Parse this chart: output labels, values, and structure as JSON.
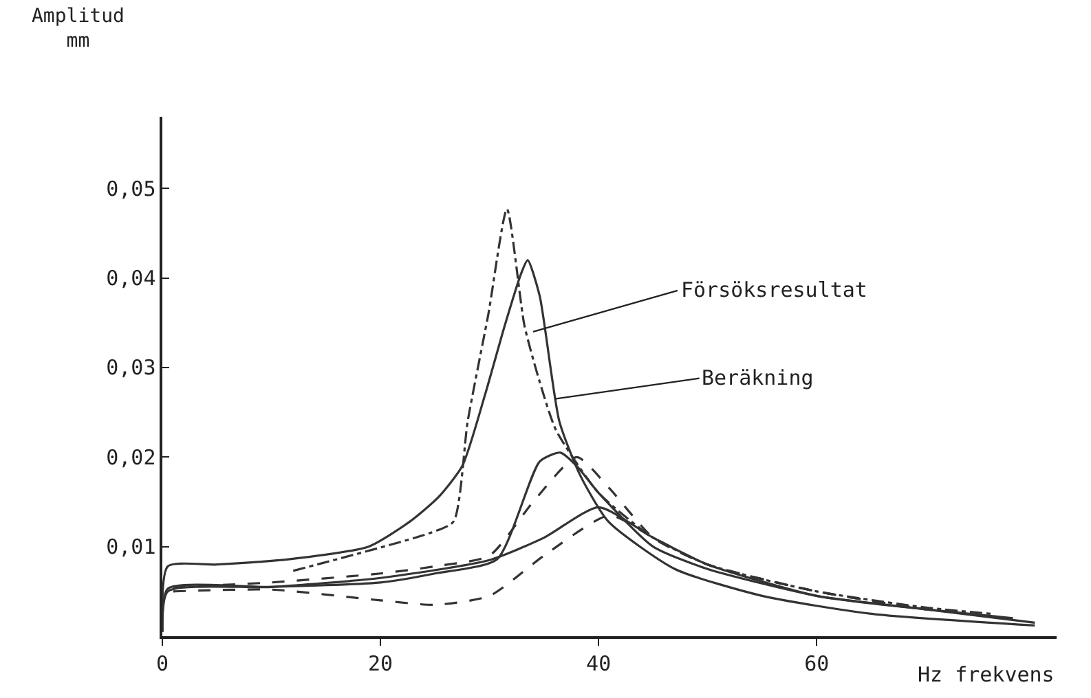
{
  "chart_data": {
    "type": "line",
    "xlabel": "Hz frekvens",
    "ylabel": "Amplitud\nmm",
    "xlim": [
      0,
      82
    ],
    "xticks": [
      0,
      20,
      40,
      60
    ],
    "ylim": [
      0,
      0.058
    ],
    "yticks": [
      {
        "value": 0.01,
        "label": "0,01"
      },
      {
        "value": 0.02,
        "label": "0,02"
      },
      {
        "value": 0.03,
        "label": "0,03"
      },
      {
        "value": 0.04,
        "label": "0,04"
      },
      {
        "value": 0.05,
        "label": "0,05"
      }
    ],
    "marker": "none",
    "annotations": [
      {
        "text": "Försöksresultat",
        "x": 34,
        "y": 0.034
      },
      {
        "text": "Beräkning",
        "x": 36,
        "y": 0.0265
      }
    ],
    "series": [
      {
        "color": "#333333",
        "line_style": "solid",
        "x": [
          0,
          0.5,
          5,
          11.7,
          18.9,
          22.7,
          25.3,
          27.5,
          29.6,
          31.4,
          32.9,
          33.5,
          34.6,
          36.4,
          38.3,
          40.9,
          47,
          55,
          65,
          80
        ],
        "values": [
          0.0005,
          0.0078,
          0.008,
          0.0086,
          0.01,
          0.0128,
          0.0155,
          0.019,
          0.027,
          0.0347,
          0.0405,
          0.042,
          0.038,
          0.024,
          0.018,
          0.0128,
          0.0075,
          0.0045,
          0.0025,
          0.0012
        ]
      },
      {
        "color": "#333333",
        "line_style": "dashdot",
        "x": [
          12,
          24.5,
          26.7,
          28,
          29.9,
          31.6,
          33.2,
          34.6,
          36.1,
          40,
          45,
          50,
          60,
          70,
          76
        ],
        "values": [
          0.0073,
          0.0115,
          0.0128,
          0.024,
          0.036,
          0.0477,
          0.0347,
          0.0284,
          0.023,
          0.016,
          0.011,
          0.008,
          0.005,
          0.0032,
          0.0025
        ]
      },
      {
        "color": "#333333",
        "line_style": "solid",
        "x": [
          0,
          0.5,
          10,
          20,
          25,
          30.7,
          34.6,
          36.5,
          38,
          40,
          45,
          50,
          60,
          70,
          80
        ],
        "values": [
          0.0005,
          0.0053,
          0.0055,
          0.006,
          0.007,
          0.0086,
          0.0195,
          0.0205,
          0.019,
          0.016,
          0.01,
          0.0075,
          0.0045,
          0.003,
          0.0015
        ]
      },
      {
        "color": "#333333",
        "line_style": "dashed",
        "x": [
          1,
          10,
          20,
          25,
          30,
          34,
          38,
          41,
          45,
          50,
          60,
          70
        ],
        "values": [
          0.0055,
          0.006,
          0.007,
          0.0078,
          0.009,
          0.015,
          0.02,
          0.0165,
          0.011,
          0.008,
          0.005,
          0.003
        ]
      },
      {
        "color": "#333333",
        "line_style": "solid",
        "x": [
          0,
          0.5,
          10,
          20,
          30,
          35,
          40,
          45,
          50,
          60,
          70,
          78
        ],
        "values": [
          0.0005,
          0.005,
          0.0055,
          0.0065,
          0.0085,
          0.011,
          0.0144,
          0.011,
          0.008,
          0.0045,
          0.003,
          0.002
        ]
      },
      {
        "color": "#333333",
        "line_style": "dashed",
        "x": [
          1,
          10,
          20,
          25,
          30,
          35,
          41,
          45,
          50,
          60,
          70
        ],
        "values": [
          0.005,
          0.0052,
          0.004,
          0.0035,
          0.0045,
          0.009,
          0.0135,
          0.011,
          0.008,
          0.005,
          0.003
        ]
      }
    ]
  }
}
